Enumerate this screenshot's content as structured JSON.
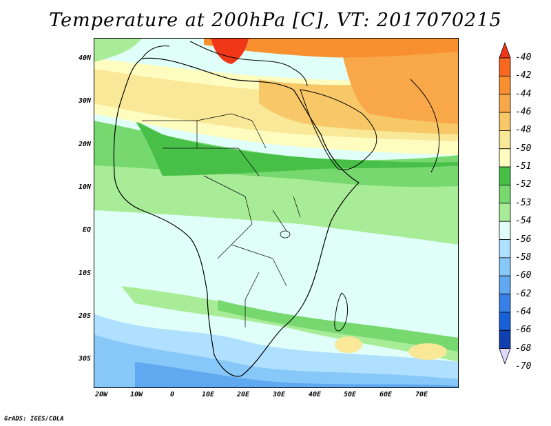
{
  "title": "Temperature at 200hPa [C], VT: 2017070215",
  "credit": "GrADS: IGES/COLA",
  "lat_labels": [
    "40N",
    "30N",
    "20N",
    "10N",
    "EQ",
    "10S",
    "20S",
    "30S"
  ],
  "lon_labels": [
    "20W",
    "10W",
    "0",
    "10E",
    "20E",
    "30E",
    "40E",
    "50E",
    "60E",
    "70E"
  ],
  "colorbar": {
    "levels": [
      "-40",
      "-42",
      "-44",
      "-46",
      "-48",
      "-50",
      "-51",
      "-52",
      "-53",
      "-54",
      "-56",
      "-58",
      "-60",
      "-62",
      "-64",
      "-66",
      "-68",
      "-70"
    ],
    "colors": [
      "#f03818",
      "#f86820",
      "#f89030",
      "#f8a848",
      "#f8c868",
      "#f8e898",
      "#fffcc0",
      "#48c048",
      "#78d870",
      "#a8ec98",
      "#e0fff8",
      "#b0e0ff",
      "#88c8f8",
      "#60a8f0",
      "#3880e8",
      "#1860d8",
      "#1040b0",
      "#081878"
    ]
  },
  "colors": {
    "tropics_pale": "#e0fff8",
    "southern_blue": "#b0e0ff",
    "coast_line": "#000000"
  }
}
